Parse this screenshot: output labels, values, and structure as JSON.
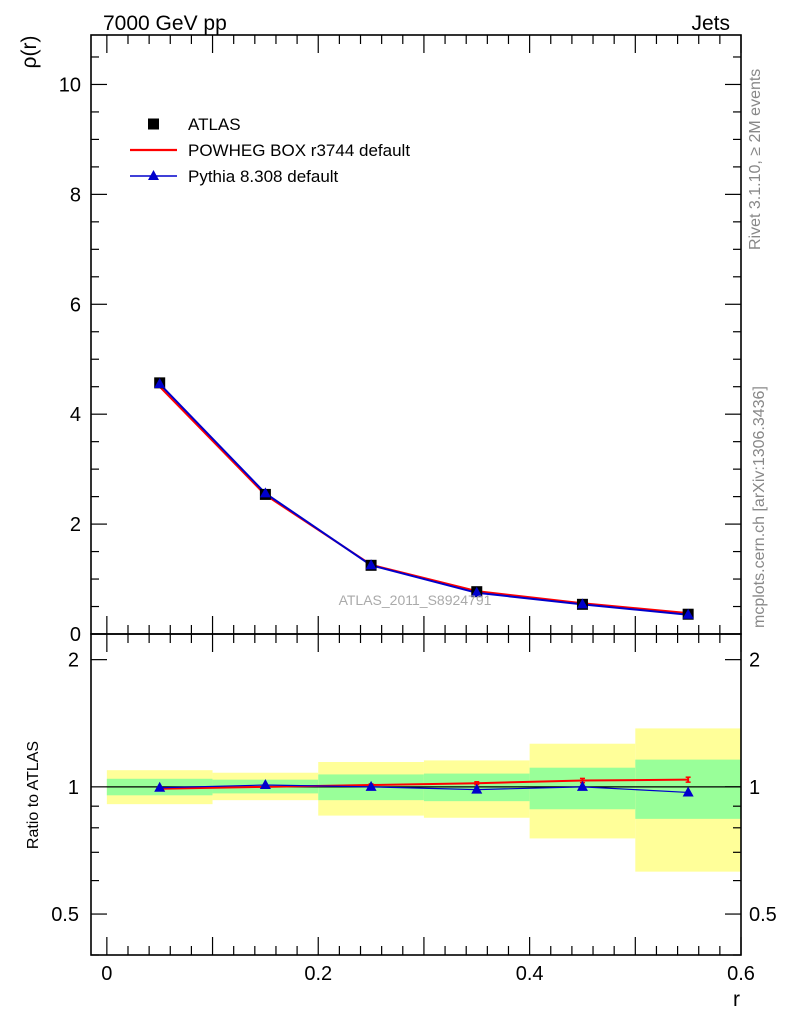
{
  "header": {
    "left": "7000 GeV pp",
    "right": "Jets"
  },
  "side_labels": {
    "rivet": "Rivet 3.1.10, ≥ 2M events",
    "mcplots": "mcplots.cern.ch [arXiv:1306.3436]"
  },
  "watermark": "ATLAS_2011_S8924791",
  "chart_data": [
    {
      "type": "line",
      "panel": "main",
      "ylabel": "ρ(r)",
      "xlabel": "",
      "xlim": [
        -0.015,
        0.6
      ],
      "ylim": [
        0,
        10.9
      ],
      "y_ticks": [
        0,
        2,
        4,
        6,
        8,
        10
      ],
      "y_tick_labels": [
        "0",
        "2",
        "4",
        "6",
        "8",
        "10"
      ],
      "legend_placement": "top-left",
      "x": [
        0.05,
        0.15,
        0.25,
        0.35,
        0.45,
        0.55
      ],
      "series": [
        {
          "name": "ATLAS",
          "style": "markers",
          "marker": "square",
          "color": "#000000",
          "values": [
            4.57,
            2.54,
            1.25,
            0.77,
            0.54,
            0.36
          ]
        },
        {
          "name": "POWHEG BOX r3744 default",
          "style": "line",
          "color": "#ff0000",
          "values": [
            4.5,
            2.53,
            1.26,
            0.78,
            0.56,
            0.38
          ]
        },
        {
          "name": "Pythia 8.308 default",
          "style": "line+markers",
          "marker": "triangle",
          "color": "#0000cc",
          "values": [
            4.55,
            2.56,
            1.25,
            0.75,
            0.54,
            0.35
          ]
        }
      ]
    },
    {
      "type": "line",
      "panel": "ratio",
      "ylabel": "Ratio to ATLAS",
      "xlabel": "r",
      "xlim": [
        -0.015,
        0.6
      ],
      "ylim": [
        0.4,
        2.3
      ],
      "y_scale": "log",
      "y_ticks": [
        0.5,
        1,
        2
      ],
      "y_tick_labels": [
        "0.5",
        "1",
        "2"
      ],
      "x_ticks": [
        0,
        0.2,
        0.4,
        0.6
      ],
      "x_tick_labels": [
        "0",
        "0.2",
        "0.4",
        "0.6"
      ],
      "bins": [
        [
          0,
          0.1
        ],
        [
          0.1,
          0.2
        ],
        [
          0.2,
          0.3
        ],
        [
          0.3,
          0.4
        ],
        [
          0.4,
          0.5
        ],
        [
          0.5,
          0.6
        ]
      ],
      "band_stat": {
        "color": "#99ff99",
        "low": [
          0.955,
          0.965,
          0.93,
          0.925,
          0.885,
          0.84
        ],
        "high": [
          1.045,
          1.04,
          1.07,
          1.075,
          1.11,
          1.16
        ]
      },
      "band_total": {
        "color": "#ffff99",
        "low": [
          0.91,
          0.93,
          0.855,
          0.845,
          0.755,
          0.63
        ],
        "high": [
          1.095,
          1.08,
          1.145,
          1.155,
          1.265,
          1.375
        ]
      },
      "x": [
        0.05,
        0.15,
        0.25,
        0.35,
        0.45,
        0.55
      ],
      "series": [
        {
          "name": "POWHEG BOX r3744 default",
          "color": "#ff0000",
          "values": [
            0.99,
            1.0,
            1.01,
            1.02,
            1.035,
            1.04
          ],
          "errors": [
            0.005,
            0.005,
            0.006,
            0.008,
            0.012,
            0.014
          ]
        },
        {
          "name": "Pythia 8.308 default",
          "color": "#0000cc",
          "values": [
            0.995,
            1.01,
            1.0,
            0.985,
            1.0,
            0.97
          ]
        }
      ]
    }
  ]
}
